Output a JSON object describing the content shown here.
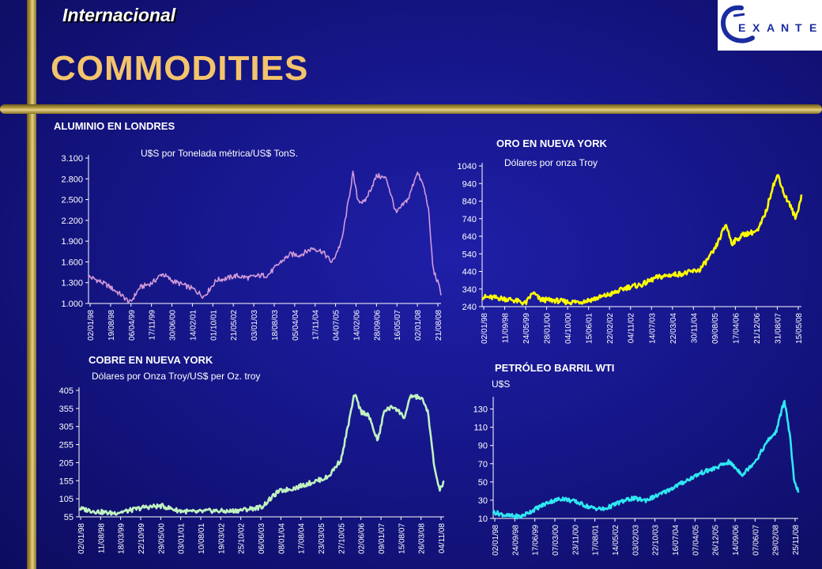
{
  "header": {
    "section_label": "Internacional",
    "title": "COMMODITIES",
    "logo_text": "EXANTE",
    "logo_letters": [
      "E",
      "X",
      "A",
      "N",
      "T",
      "E"
    ]
  },
  "colors": {
    "background": "#16168a",
    "frame": "#c8ab4d",
    "title": "#f4c46c",
    "aluminio": "#d29ad8",
    "oro": "#ffff00",
    "cobre": "#c0f2c0",
    "petroleo": "#2fe8f2"
  },
  "chart_data": [
    {
      "id": "aluminio",
      "type": "line",
      "title": "ALUMINIO EN LONDRES",
      "subtitle": "U$S por Tonelada métrica/US$ TonS.",
      "ylim": [
        1000,
        3100
      ],
      "yticks": [
        "3.100",
        "2.800",
        "2.500",
        "2.200",
        "1.900",
        "1.600",
        "1.300",
        "1.000"
      ],
      "ytick_values": [
        3100,
        2800,
        2500,
        2200,
        1900,
        1600,
        1300,
        1000
      ],
      "xticks": [
        "02/01/98",
        "19/08/98",
        "06/04/99",
        "17/11/99",
        "30/06/00",
        "14/02/01",
        "01/10/01",
        "21/05/02",
        "03/01/03",
        "18/08/03",
        "05/04/04",
        "17/11/04",
        "04/07/05",
        "14/02/06",
        "28/09/06",
        "16/05/07",
        "02/01/08",
        "21/08/08"
      ],
      "x": [
        1998.0,
        1998.3,
        1998.6,
        1999.0,
        1999.3,
        1999.6,
        2000.0,
        2000.3,
        2000.6,
        2001.0,
        2001.3,
        2001.6,
        2002.0,
        2002.3,
        2002.6,
        2003.0,
        2003.3,
        2003.6,
        2004.0,
        2004.3,
        2004.6,
        2005.0,
        2005.3,
        2005.6,
        2005.9,
        2006.1,
        2006.25,
        2006.4,
        2006.6,
        2007.0,
        2007.3,
        2007.6,
        2008.0,
        2008.25,
        2008.45,
        2008.6,
        2008.75,
        2008.9,
        2009.0
      ],
      "values": [
        1390,
        1330,
        1260,
        1130,
        1010,
        1230,
        1300,
        1430,
        1330,
        1260,
        1200,
        1100,
        1340,
        1360,
        1400,
        1370,
        1400,
        1410,
        1600,
        1710,
        1700,
        1800,
        1750,
        1590,
        1900,
        2450,
        2880,
        2500,
        2450,
        2850,
        2800,
        2300,
        2530,
        2900,
        2700,
        2400,
        1500,
        1300,
        1150
      ]
    },
    {
      "id": "oro",
      "type": "line",
      "title": "ORO EN NUEVA YORK",
      "subtitle": "Dólares por onza Troy",
      "ylim": [
        240,
        1040
      ],
      "yticks": [
        "1040",
        "940",
        "840",
        "740",
        "640",
        "540",
        "440",
        "340",
        "240"
      ],
      "ytick_values": [
        1040,
        940,
        840,
        740,
        640,
        540,
        440,
        340,
        240
      ],
      "xticks": [
        "02/01/98",
        "11/09/98",
        "24/05/99",
        "28/01/00",
        "04/10/00",
        "15/06/01",
        "22/02/02",
        "04/11/02",
        "14/07/03",
        "22/03/04",
        "30/11/04",
        "09/08/05",
        "17/04/06",
        "21/12/06",
        "31/08/07",
        "15/05/08"
      ],
      "x": [
        1998.0,
        1998.5,
        1999.0,
        1999.5,
        1999.75,
        2000.0,
        2000.5,
        2001.0,
        2001.5,
        2002.0,
        2002.5,
        2003.0,
        2003.5,
        2004.0,
        2004.5,
        2005.0,
        2005.5,
        2006.0,
        2006.4,
        2006.6,
        2007.0,
        2007.5,
        2007.8,
        2008.0,
        2008.2,
        2008.4,
        2008.6,
        2008.8,
        2009.0
      ],
      "values": [
        295,
        290,
        280,
        258,
        320,
        280,
        275,
        265,
        270,
        290,
        315,
        350,
        365,
        405,
        420,
        430,
        450,
        560,
        710,
        600,
        650,
        670,
        790,
        920,
        990,
        880,
        820,
        740,
        870
      ]
    },
    {
      "id": "cobre",
      "type": "line",
      "title": "COBRE EN NUEVA YORK",
      "subtitle": "Dólares por Onza Troy/US$ per Oz. troy",
      "ylim": [
        55,
        405
      ],
      "yticks": [
        "405",
        "355",
        "305",
        "255",
        "205",
        "155",
        "105",
        "55"
      ],
      "ytick_values": [
        405,
        355,
        305,
        255,
        205,
        155,
        105,
        55
      ],
      "xticks": [
        "02/01/98",
        "11/08/98",
        "18/03/99",
        "22/10/99",
        "29/05/00",
        "03/01/01",
        "10/08/01",
        "19/03/02",
        "25/10/02",
        "06/06/03",
        "08/01/04",
        "17/08/04",
        "23/03/05",
        "27/10/05",
        "02/06/06",
        "09/01/07",
        "15/08/07",
        "26/03/08",
        "04/11/08"
      ],
      "x": [
        1998.0,
        1998.5,
        1999.0,
        1999.5,
        2000.0,
        2000.5,
        2001.0,
        2001.5,
        2002.0,
        2002.5,
        2003.0,
        2003.5,
        2004.0,
        2004.5,
        2005.0,
        2005.5,
        2005.9,
        2006.3,
        2006.5,
        2006.7,
        2007.0,
        2007.2,
        2007.5,
        2007.8,
        2008.0,
        2008.3,
        2008.5,
        2008.7,
        2008.85,
        2009.0
      ],
      "values": [
        78,
        70,
        65,
        72,
        82,
        85,
        72,
        68,
        72,
        70,
        75,
        82,
        125,
        135,
        150,
        165,
        215,
        395,
        345,
        340,
        265,
        350,
        360,
        330,
        390,
        385,
        350,
        195,
        130,
        150
      ]
    },
    {
      "id": "petroleo",
      "type": "line",
      "title": "PETRÓLEO BARRIL WTI",
      "subtitle": "U$S",
      "ylim": [
        10,
        140
      ],
      "yticks": [
        "130",
        "110",
        "90",
        "70",
        "50",
        "30",
        "10"
      ],
      "ytick_values": [
        130,
        110,
        90,
        70,
        50,
        30,
        10
      ],
      "xticks": [
        "02/01/98",
        "24/09/98",
        "17/06/99",
        "07/03/00",
        "23/11/00",
        "17/08/01",
        "14/05/02",
        "03/02/03",
        "22/10/03",
        "16/07/04",
        "07/04/05",
        "26/12/05",
        "14/09/06",
        "07/06/07",
        "29/02/08",
        "25/11/08"
      ],
      "x": [
        1998.0,
        1998.5,
        1999.0,
        1999.5,
        2000.0,
        2000.5,
        2001.0,
        2001.5,
        2002.0,
        2002.5,
        2003.0,
        2003.5,
        2004.0,
        2004.5,
        2005.0,
        2005.5,
        2006.0,
        2006.5,
        2007.0,
        2007.5,
        2007.9,
        2008.2,
        2008.5,
        2008.7,
        2008.85,
        2009.0
      ],
      "values": [
        17,
        13,
        12,
        20,
        28,
        32,
        28,
        22,
        20,
        27,
        32,
        30,
        36,
        44,
        52,
        60,
        65,
        72,
        58,
        75,
        95,
        105,
        140,
        100,
        50,
        40
      ]
    }
  ]
}
